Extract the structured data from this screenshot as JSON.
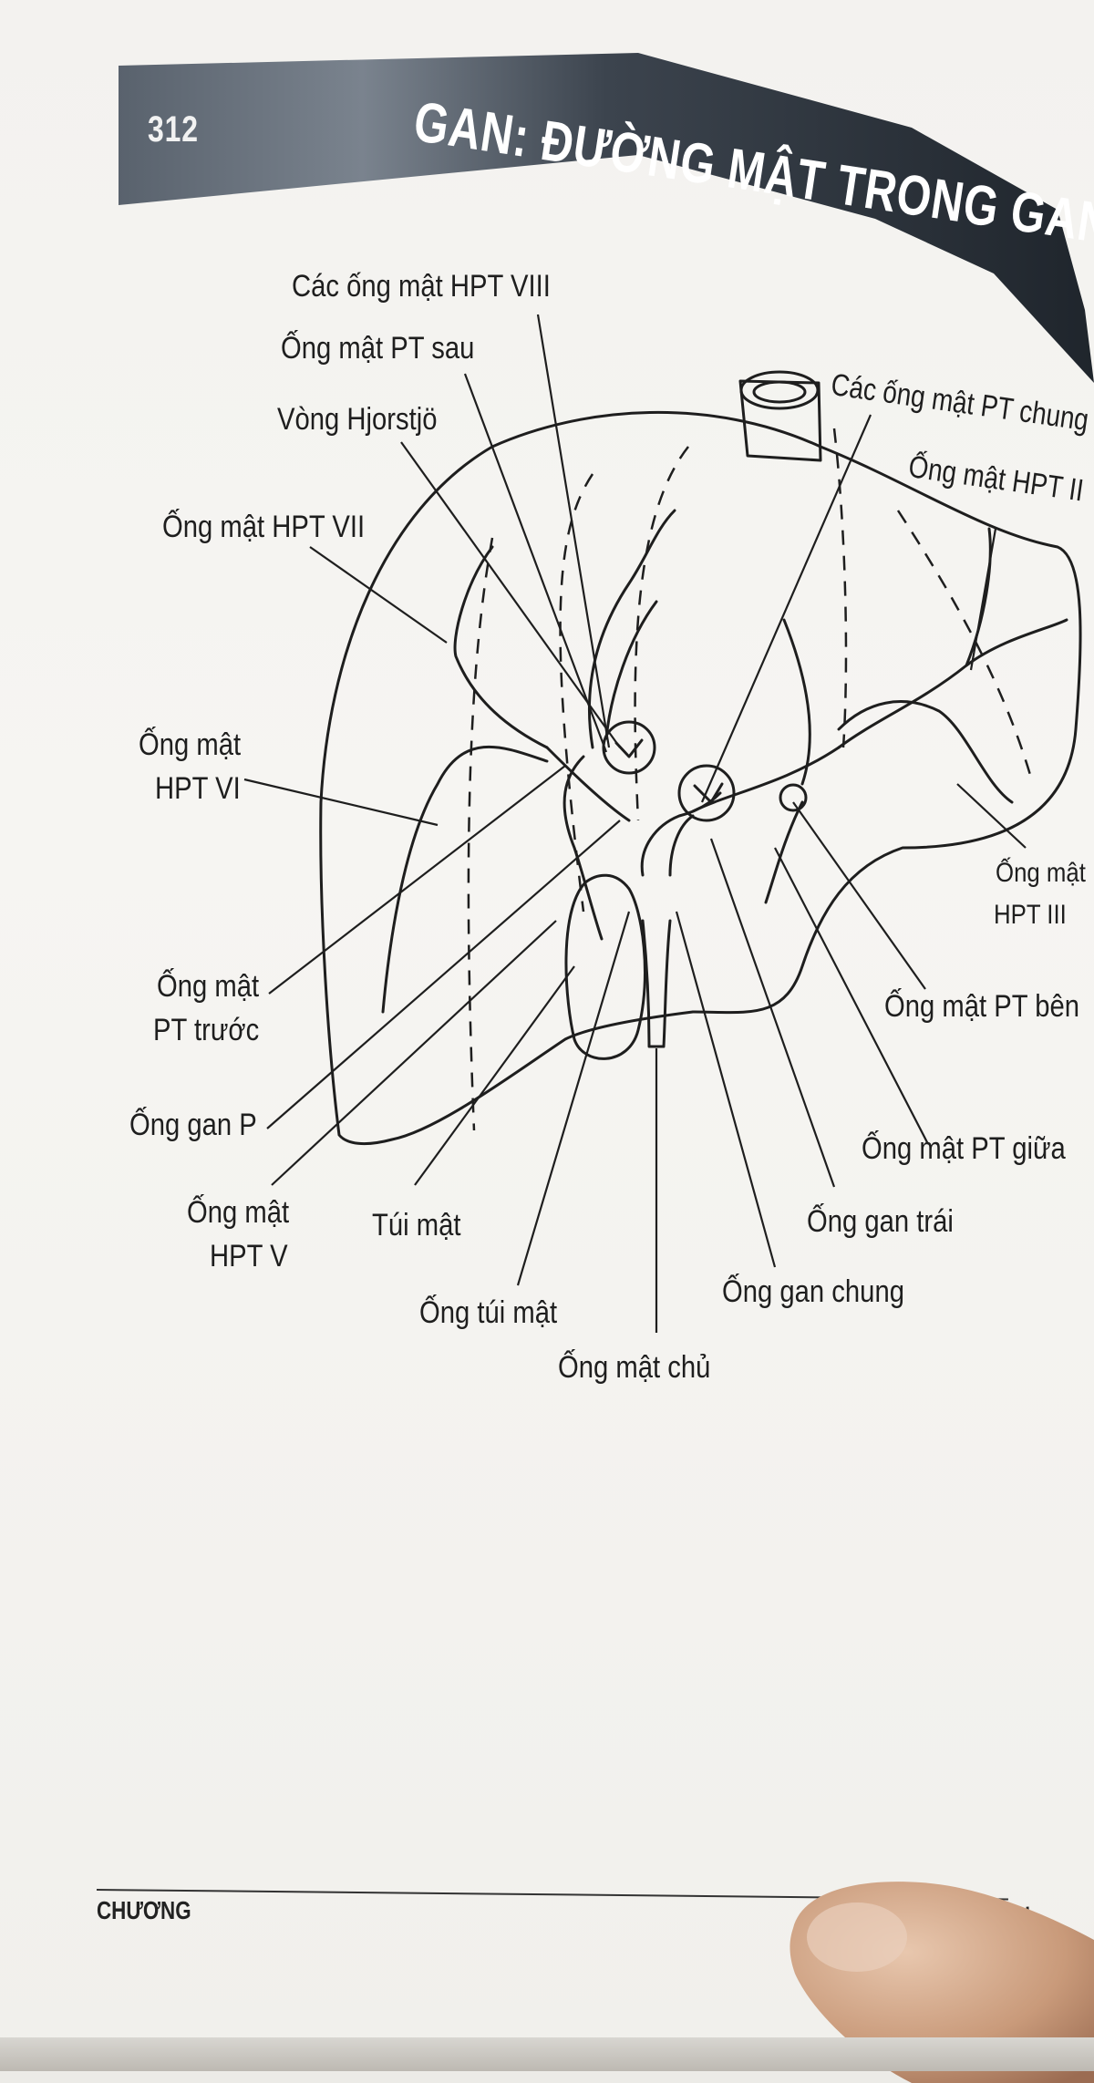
{
  "header": {
    "page_number": "312",
    "chapter_title": "GAN: ĐƯỜNG MẬT TRONG GAN"
  },
  "labels": {
    "hpt8": "Các ống mật HPT VIII",
    "pt_sau": "Ống mật PT sau",
    "hjorstjo": "Vòng Hjorstjö",
    "hpt7": "Ống mật HPT VII",
    "pt_chung": "Các ống mật PT chung",
    "hpt2": "Ống mật HPT II",
    "hpt6_line1": "Ống mật",
    "hpt6_line2": "HPT VI",
    "hpt3_line1": "Ống mật",
    "hpt3_line2": "HPT III",
    "pt_truoc_line1": "Ống mật",
    "pt_truoc_line2": "PT trước",
    "pt_ben": "Ống mật PT bên",
    "gan_p": "Ống gan P",
    "pt_giua": "Ống mật PT giữa",
    "hpt5_line1": "Ống mật",
    "hpt5_line2": "HPT V",
    "tui_mat": "Túi mật",
    "gan_trai": "Ống gan trái",
    "gan_chung": "Ống gan chung",
    "tui_mat_duct": "Ống túi mật",
    "mat_chu": "Ống mật  chủ"
  },
  "footer": {
    "left": "CHƯƠNG",
    "right": "GAN"
  },
  "colors": {
    "header_dark": "#2f3640",
    "header_light": "#6d7682",
    "ink": "#1e1e1e"
  }
}
